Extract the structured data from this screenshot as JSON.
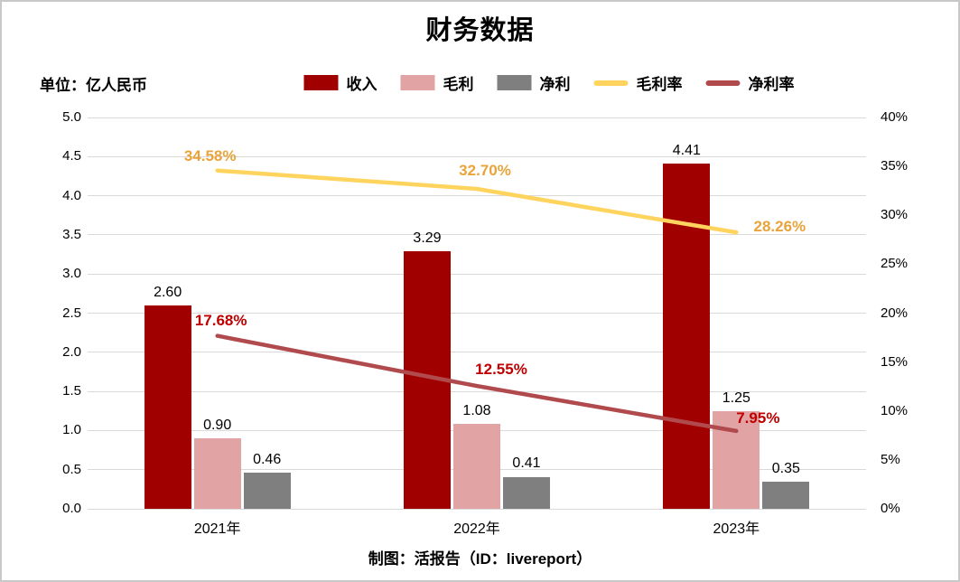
{
  "title": "财务数据",
  "unit_label": "单位：亿人民币",
  "footer": "制图：活报告（ID：livereport）",
  "colors": {
    "revenue": "#A00000",
    "gross_profit": "#E1A3A3",
    "net_profit": "#7F7F7F",
    "gross_margin_line": "#FFD45E",
    "gross_margin_label": "#E9A33B",
    "net_margin_line": "#B04A4D",
    "net_margin_label": "#C00000",
    "gridline": "#D9D9D9"
  },
  "chart_data": {
    "type": "bar",
    "subtype": "combo-bar-line",
    "title": "财务数据",
    "categories": [
      "2021年",
      "2022年",
      "2023年"
    ],
    "bar_series": [
      {
        "key": "revenue",
        "name": "收入",
        "values": [
          2.6,
          3.29,
          4.41
        ],
        "labels": [
          "2.60",
          "3.29",
          "4.41"
        ],
        "color": "#A00000"
      },
      {
        "key": "gross-profit",
        "name": "毛利",
        "values": [
          0.9,
          1.08,
          1.25
        ],
        "labels": [
          "0.90",
          "1.08",
          "1.25"
        ],
        "color": "#E1A3A3"
      },
      {
        "key": "net-profit",
        "name": "净利",
        "values": [
          0.46,
          0.41,
          0.35
        ],
        "labels": [
          "0.46",
          "0.41",
          "0.35"
        ],
        "color": "#7F7F7F"
      }
    ],
    "line_series": [
      {
        "key": "gross-margin",
        "name": "毛利率",
        "values": [
          34.58,
          32.7,
          28.26
        ],
        "labels": [
          "34.58%",
          "32.70%",
          "28.26%"
        ],
        "color": "#FFD45E",
        "label_color": "#E9A33B"
      },
      {
        "key": "net-margin",
        "name": "净利率",
        "values": [
          17.68,
          12.55,
          7.95
        ],
        "labels": [
          "17.68%",
          "12.55%",
          "7.95%"
        ],
        "color": "#B04A4D",
        "label_color": "#C00000"
      }
    ],
    "left_axis": {
      "min": 0.0,
      "max": 5.0,
      "step": 0.5,
      "labels": [
        "5.0",
        "4.5",
        "4.0",
        "3.5",
        "3.0",
        "2.5",
        "2.0",
        "1.5",
        "1.0",
        "0.5",
        "0.0"
      ]
    },
    "right_axis": {
      "min": 0,
      "max": 40,
      "step": 5,
      "labels": [
        "40%",
        "35%",
        "30%",
        "25%",
        "20%",
        "15%",
        "10%",
        "5%",
        "0%"
      ]
    },
    "grid": true,
    "legend_position": "top"
  }
}
